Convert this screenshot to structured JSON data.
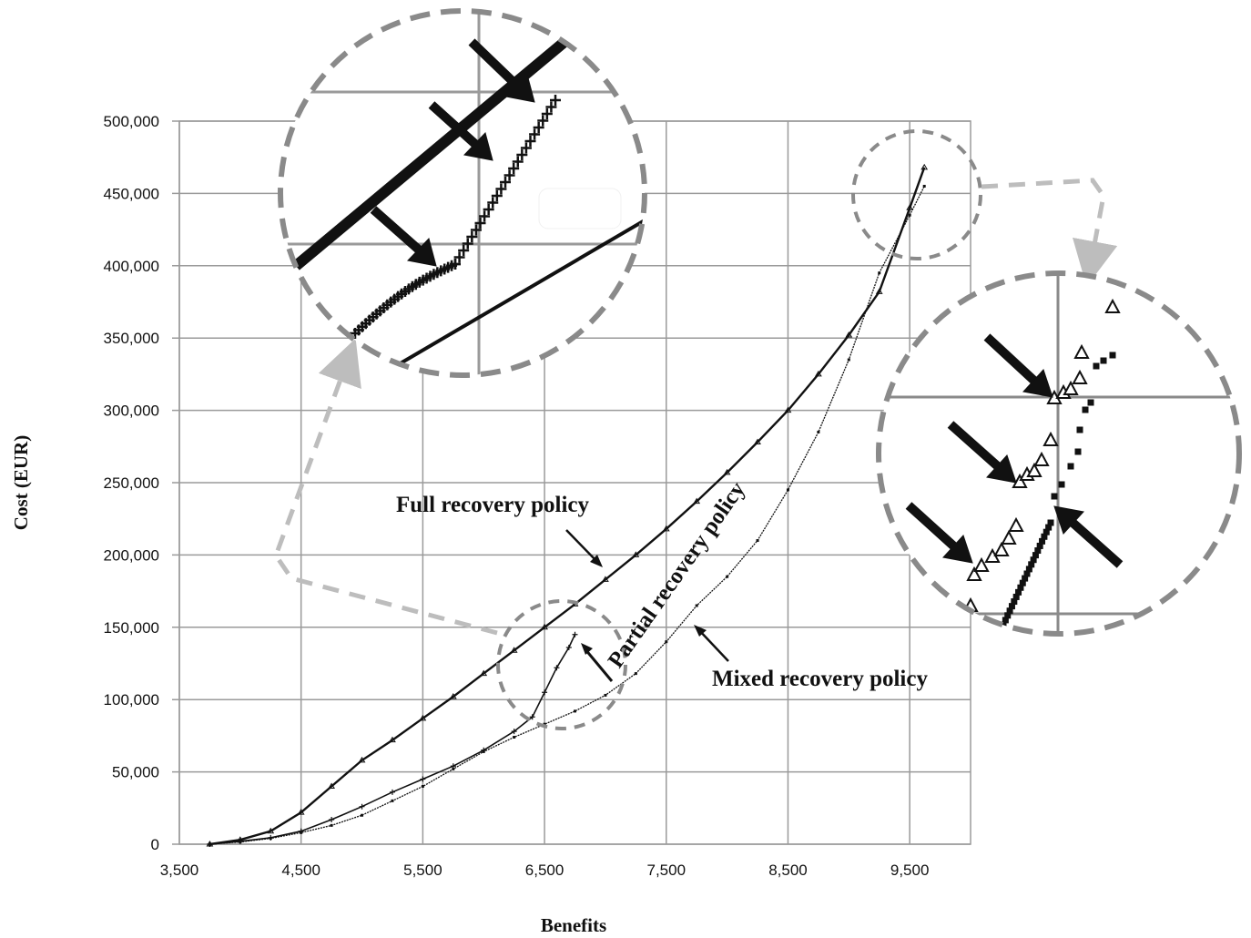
{
  "chart_data": {
    "type": "scatter",
    "xlabel": "Benefits",
    "ylabel": "Cost (EUR)",
    "xlim": [
      3500,
      10000
    ],
    "ylim": [
      0,
      500000
    ],
    "x_ticks": [
      "3,500",
      "4,500",
      "5,500",
      "6,500",
      "7,500",
      "8,500",
      "9,500"
    ],
    "y_ticks": [
      "0",
      "50,000",
      "100,000",
      "150,000",
      "200,000",
      "250,000",
      "300,000",
      "350,000",
      "400,000",
      "450,000",
      "500,000"
    ],
    "grid": true,
    "annotations": {
      "full": "Full recovery policy",
      "partial": "Partial recovery policy",
      "mixed": "Mixed recovery policy"
    },
    "series": [
      {
        "name": "Full recovery policy",
        "marker": "triangle",
        "points": [
          [
            3750,
            0
          ],
          [
            4000,
            3000
          ],
          [
            4250,
            9000
          ],
          [
            4500,
            22000
          ],
          [
            4750,
            40000
          ],
          [
            5000,
            58000
          ],
          [
            5250,
            72000
          ],
          [
            5500,
            87000
          ],
          [
            5750,
            102000
          ],
          [
            6000,
            118000
          ],
          [
            6250,
            134000
          ],
          [
            6500,
            150000
          ],
          [
            6750,
            166000
          ],
          [
            7000,
            183000
          ],
          [
            7250,
            200000
          ],
          [
            7500,
            218000
          ],
          [
            7750,
            237000
          ],
          [
            8000,
            257000
          ],
          [
            8250,
            278000
          ],
          [
            8500,
            300000
          ],
          [
            8750,
            325000
          ],
          [
            9000,
            352000
          ],
          [
            9250,
            382000
          ],
          [
            9500,
            440000
          ],
          [
            9620,
            468000
          ]
        ]
      },
      {
        "name": "Partial recovery policy",
        "marker": "plus",
        "points": [
          [
            3750,
            0
          ],
          [
            4000,
            2000
          ],
          [
            4250,
            4500
          ],
          [
            4500,
            9000
          ],
          [
            4750,
            17000
          ],
          [
            5000,
            26000
          ],
          [
            5250,
            36000
          ],
          [
            5500,
            45000
          ],
          [
            5750,
            54000
          ],
          [
            6000,
            65000
          ],
          [
            6250,
            78000
          ],
          [
            6400,
            88000
          ],
          [
            6500,
            105000
          ],
          [
            6600,
            122000
          ],
          [
            6700,
            136000
          ],
          [
            6750,
            145000
          ]
        ]
      },
      {
        "name": "Mixed recovery policy",
        "marker": "square",
        "points": [
          [
            3750,
            0
          ],
          [
            4000,
            1500
          ],
          [
            4250,
            4000
          ],
          [
            4500,
            8000
          ],
          [
            4750,
            13000
          ],
          [
            5000,
            20000
          ],
          [
            5250,
            30000
          ],
          [
            5500,
            40000
          ],
          [
            5750,
            52000
          ],
          [
            6000,
            64000
          ],
          [
            6250,
            74000
          ],
          [
            6500,
            83000
          ],
          [
            6750,
            92000
          ],
          [
            7000,
            103000
          ],
          [
            7250,
            118000
          ],
          [
            7500,
            140000
          ],
          [
            7750,
            165000
          ],
          [
            8000,
            185000
          ],
          [
            8250,
            210000
          ],
          [
            8500,
            245000
          ],
          [
            8750,
            285000
          ],
          [
            9000,
            335000
          ],
          [
            9250,
            395000
          ],
          [
            9500,
            435000
          ],
          [
            9620,
            455000
          ]
        ]
      }
    ]
  },
  "colors": {
    "grid": "#9a9a9a",
    "series": "#111111",
    "zoom_circle": "#8a8a8a",
    "connector": "#bdbdbd"
  }
}
